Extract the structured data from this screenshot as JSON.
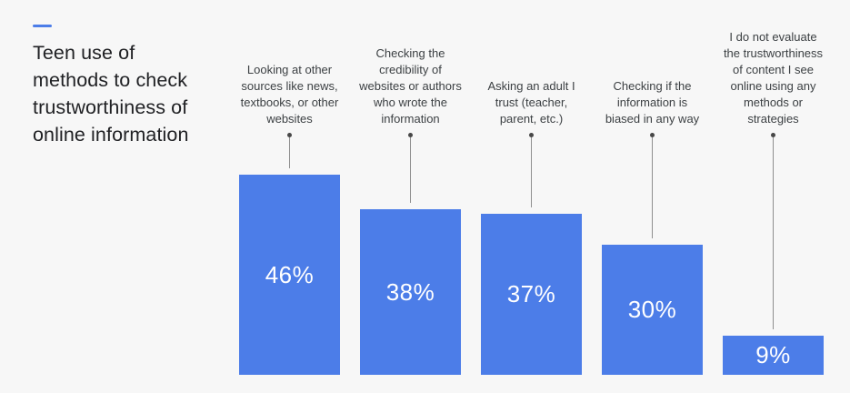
{
  "page": {
    "background": "#f7f7f7"
  },
  "title": {
    "display_text": "Teen use of\nmethods to check\ntrustworthiness of\nonline information",
    "accent_dash_color": "#4c7de8"
  },
  "chart_data": {
    "type": "bar",
    "title": "Teen use of methods to check trustworthiness of online information",
    "orientation": "vertical",
    "unit": "%",
    "bar_color": "#4c7de8",
    "value_label_color": "#ffffff",
    "connector_line_color": "#8f8f8f",
    "connector_dot_color": "#474747",
    "gridlines": false,
    "axes_shown": false,
    "ylim": [
      0,
      50
    ],
    "categories": [
      "Looking at other\nsources like news,\ntextbooks, or other\nwebsites",
      "Checking the\ncredibility of\nwebsites or authors\nwho wrote the\ninformation",
      "Asking an adult I\ntrust (teacher,\nparent, etc.)",
      "Checking if the\ninformation is\nbiased in any way",
      "I do not evaluate\nthe trustworthiness\nof content I see\nonline using any\nmethods or\nstrategies"
    ],
    "values": [
      46,
      38,
      37,
      30,
      9
    ],
    "value_labels": [
      "46%",
      "38%",
      "37%",
      "30%",
      "9%"
    ]
  }
}
